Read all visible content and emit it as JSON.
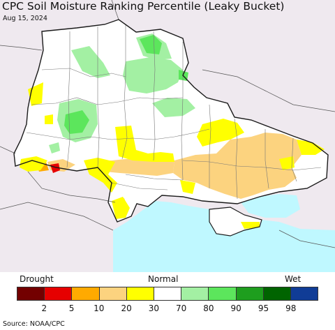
{
  "title": "CPC Soil Moisture Ranking Percentile (Leaky Bucket)",
  "date": "Aug 15, 2024",
  "legend": {
    "left_label": "Drought",
    "center_label": "Normal",
    "right_label": "Wet",
    "ticks": [
      "2",
      "5",
      "10",
      "20",
      "30",
      "70",
      "80",
      "90",
      "95",
      "98"
    ],
    "colors": [
      "#730000",
      "#e60000",
      "#ffaa00",
      "#fcd37f",
      "#ffff00",
      "#ffffff",
      "#a3f0a3",
      "#5ce65c",
      "#1e9e1e",
      "#006400",
      "#103c96"
    ]
  },
  "map": {
    "sea_color": "#bff8ff",
    "outside_color": "#efe9ef",
    "border_color": "#1a1a1a",
    "subregion_color": "#777777"
  },
  "source": "Source: NOAA/CPC"
}
